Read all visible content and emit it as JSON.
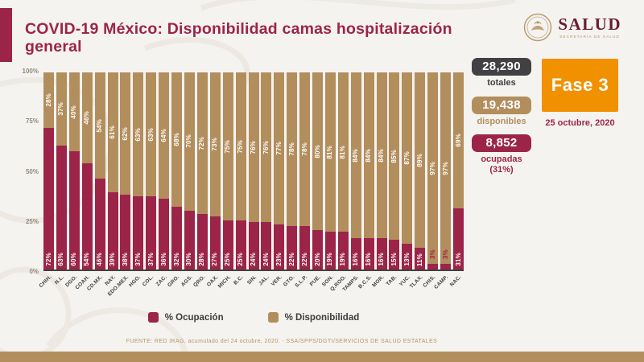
{
  "page": {
    "title": "COVID-19 México: Disponibilidad camas hospitalización general",
    "footer": "FUENTE: RED IRAG, acumulado del 24 octubre, 2020. -  SSA/SPPS/DGTI/SERVICIOS DE SALUD ESTATALES"
  },
  "logo": {
    "name": "SALUD",
    "subtitle": "SECRETARÍA DE SALUD"
  },
  "stats": [
    {
      "value": "28,290",
      "label": "totales",
      "color": "#414042"
    },
    {
      "value": "19,438",
      "label": "disponibles",
      "color": "#b38e5d"
    },
    {
      "value": "8,852",
      "label": "ocupadas",
      "sublabel": "(31%)",
      "color": "#9d2449"
    }
  ],
  "phase": {
    "label": "Fase 3",
    "date": "25 octubre, 2020",
    "color": "#f19100"
  },
  "legend": [
    {
      "label": "% Ocupación",
      "color": "#9d2449"
    },
    {
      "label": "% Disponibilidad",
      "color": "#b38e5d"
    }
  ],
  "chart_data": {
    "type": "bar",
    "stacked": true,
    "title": "Disponibilidad camas hospitalización general",
    "categories": [
      "CHIH.",
      "N.L.",
      "DGO.",
      "COAH.",
      "CD.MX.",
      "NAY.",
      "EDO.MEX.",
      "HGO.",
      "COL.",
      "ZAC.",
      "GRO.",
      "AGS.",
      "QRO.",
      "OAX.",
      "MICH.",
      "B.C.",
      "SIN.",
      "JAL.",
      "VER.",
      "GTO.",
      "S.L.P.",
      "PUE.",
      "SON.",
      "Q.ROO.",
      "TAMPS.",
      "B.C.S.",
      "MOR.",
      "TAB.",
      "YUC.",
      "TLAX.",
      "CHIS.",
      "CAMP.",
      "NAC."
    ],
    "series": [
      {
        "name": "% Ocupación",
        "color": "#9d2449",
        "values": [
          72,
          63,
          60,
          54,
          46,
          39,
          38,
          37,
          37,
          36,
          32,
          30,
          28,
          27,
          25,
          25,
          24,
          24,
          23,
          22,
          22,
          20,
          19,
          19,
          16,
          16,
          16,
          15,
          13,
          11,
          3,
          3,
          31
        ]
      },
      {
        "name": "% Disponibilidad",
        "color": "#b38e5d",
        "values": [
          28,
          37,
          40,
          46,
          54,
          61,
          62,
          63,
          63,
          64,
          68,
          70,
          72,
          73,
          75,
          75,
          76,
          76,
          77,
          78,
          78,
          80,
          81,
          81,
          84,
          84,
          84,
          85,
          87,
          89,
          97,
          97,
          69
        ]
      }
    ],
    "xlabel": "",
    "ylabel": "",
    "ylim": [
      0,
      100
    ],
    "yticks": [
      "100%",
      "75%",
      "50%",
      "25%",
      "0%"
    ],
    "grid": false,
    "legend_position": "bottom"
  }
}
